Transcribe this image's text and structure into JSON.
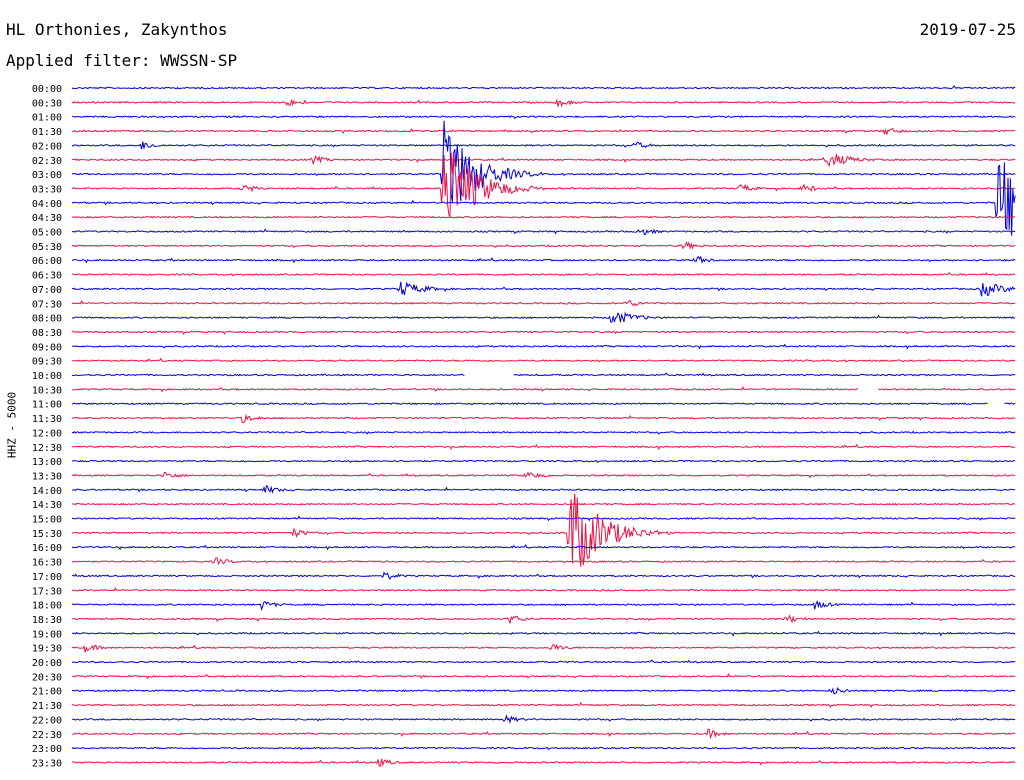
{
  "header": {
    "station": "HL Orthonies, Zakynthos",
    "date": "2019-07-25",
    "filter_line": "Applied filter: WWSSN-SP"
  },
  "chart_data": {
    "type": "helicorder",
    "ylabel": "HHZ - 5000",
    "colors": [
      "#0000dd",
      "#ee1144"
    ],
    "rows": [
      "00:00",
      "00:30",
      "01:00",
      "01:30",
      "02:00",
      "02:30",
      "03:00",
      "03:30",
      "04:00",
      "04:30",
      "05:00",
      "05:30",
      "06:00",
      "06:30",
      "07:00",
      "07:30",
      "08:00",
      "08:30",
      "09:00",
      "09:30",
      "10:00",
      "10:30",
      "11:00",
      "11:30",
      "12:00",
      "12:30",
      "13:00",
      "13:30",
      "14:00",
      "14:30",
      "15:00",
      "15:30",
      "16:00",
      "16:30",
      "17:00",
      "17:30",
      "18:00",
      "18:30",
      "19:00",
      "19:30",
      "20:00",
      "20:30",
      "21:00",
      "21:30",
      "22:00",
      "22:30",
      "23:00",
      "23:30"
    ],
    "events": [
      {
        "row": "00:30",
        "minute": 6.8,
        "size": "small"
      },
      {
        "row": "00:30",
        "minute": 15.4,
        "size": "small"
      },
      {
        "row": "01:30",
        "minute": 25.8,
        "size": "small"
      },
      {
        "row": "02:00",
        "minute": 2.2,
        "size": "small"
      },
      {
        "row": "02:00",
        "minute": 17.8,
        "size": "small"
      },
      {
        "row": "02:30",
        "minute": 7.6,
        "size": "small"
      },
      {
        "row": "02:30",
        "minute": 24.0,
        "size": "medium"
      },
      {
        "row": "03:00",
        "minute": 11.8,
        "size": "large"
      },
      {
        "row": "03:30",
        "minute": 5.4,
        "size": "small"
      },
      {
        "row": "03:30",
        "minute": 11.8,
        "size": "large"
      },
      {
        "row": "03:30",
        "minute": 21.2,
        "size": "small"
      },
      {
        "row": "03:30",
        "minute": 23.2,
        "size": "small"
      },
      {
        "row": "04:00",
        "minute": 29.4,
        "size": "large"
      },
      {
        "row": "05:00",
        "minute": 18.0,
        "size": "small"
      },
      {
        "row": "05:30",
        "minute": 19.4,
        "size": "small"
      },
      {
        "row": "06:00",
        "minute": 19.8,
        "size": "small"
      },
      {
        "row": "07:00",
        "minute": 10.4,
        "size": "medium"
      },
      {
        "row": "07:00",
        "minute": 28.9,
        "size": "medium"
      },
      {
        "row": "07:30",
        "minute": 17.6,
        "size": "small"
      },
      {
        "row": "08:00",
        "minute": 17.1,
        "size": "medium"
      },
      {
        "row": "11:30",
        "minute": 5.4,
        "size": "small"
      },
      {
        "row": "13:30",
        "minute": 2.9,
        "size": "small"
      },
      {
        "row": "13:30",
        "minute": 14.4,
        "size": "small"
      },
      {
        "row": "14:00",
        "minute": 6.1,
        "size": "small"
      },
      {
        "row": "15:30",
        "minute": 7.0,
        "size": "small"
      },
      {
        "row": "15:30",
        "minute": 15.8,
        "size": "large"
      },
      {
        "row": "16:30",
        "minute": 4.5,
        "size": "small"
      },
      {
        "row": "17:00",
        "minute": 9.9,
        "size": "small"
      },
      {
        "row": "18:00",
        "minute": 6.0,
        "size": "small"
      },
      {
        "row": "18:00",
        "minute": 23.6,
        "size": "small"
      },
      {
        "row": "18:30",
        "minute": 13.9,
        "size": "small"
      },
      {
        "row": "18:30",
        "minute": 22.7,
        "size": "small"
      },
      {
        "row": "19:30",
        "minute": 0.4,
        "size": "small"
      },
      {
        "row": "19:30",
        "minute": 15.2,
        "size": "small"
      },
      {
        "row": "21:00",
        "minute": 24.1,
        "size": "small"
      },
      {
        "row": "22:00",
        "minute": 13.7,
        "size": "small"
      },
      {
        "row": "22:30",
        "minute": 20.2,
        "size": "small"
      },
      {
        "row": "23:30",
        "minute": 9.7,
        "size": "small"
      }
    ],
    "gaps": [
      {
        "row": "10:00",
        "from_minute": 12.5,
        "to_minute": 14.0
      },
      {
        "row": "10:30",
        "from_minute": 25.0,
        "to_minute": 25.6
      },
      {
        "row": "11:00",
        "from_minute": 29.1,
        "to_minute": 29.6
      }
    ]
  }
}
